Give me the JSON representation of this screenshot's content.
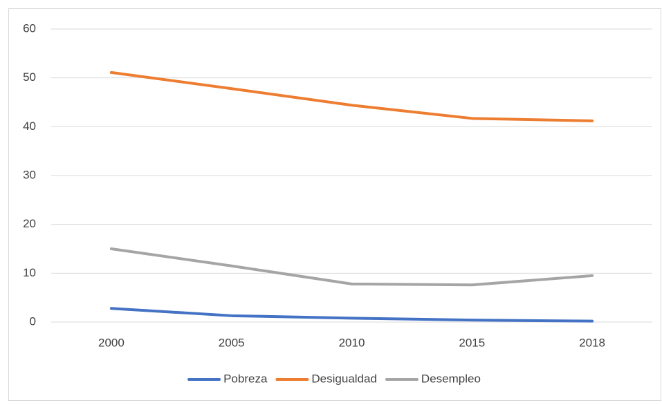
{
  "chart_data": {
    "type": "line",
    "categories": [
      "2000",
      "2005",
      "2010",
      "2015",
      "2018"
    ],
    "series": [
      {
        "name": "Pobreza",
        "color": "#4472c4",
        "values": [
          2.8,
          1.3,
          0.8,
          0.4,
          0.2
        ]
      },
      {
        "name": "Desigualdad",
        "color": "#ed7d31",
        "values": [
          51.1,
          47.8,
          44.4,
          41.7,
          41.2
        ]
      },
      {
        "name": "Desempleo",
        "color": "#a5a5a5",
        "values": [
          15.0,
          11.5,
          7.8,
          7.6,
          9.5
        ]
      }
    ],
    "ylim": [
      0,
      60
    ],
    "yticks": [
      0,
      10,
      20,
      30,
      40,
      50,
      60
    ],
    "grid": true,
    "legend": "bottom"
  }
}
